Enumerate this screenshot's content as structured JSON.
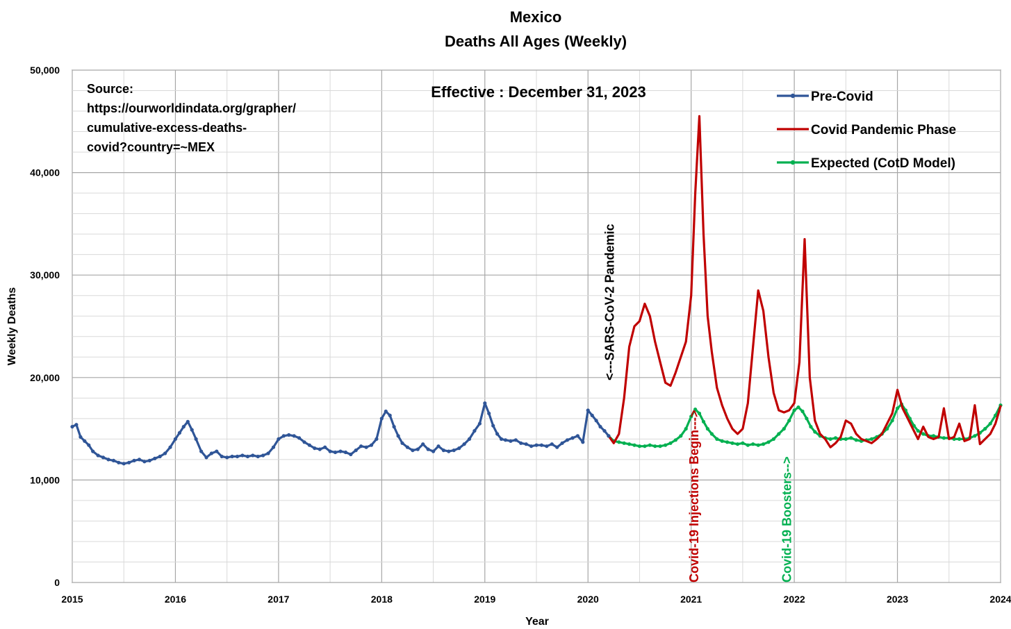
{
  "chart_data": {
    "type": "line",
    "title": "Mexico",
    "subtitle": "Deaths All Ages (Weekly)",
    "xlabel": "Year",
    "ylabel": "Weekly Deaths",
    "xlim": [
      2015,
      2024
    ],
    "ylim": [
      0,
      50000
    ],
    "x_ticks": [
      "2015",
      "2016",
      "2017",
      "2018",
      "2019",
      "2020",
      "2021",
      "2022",
      "2023",
      "2024"
    ],
    "y_ticks": [
      "0",
      "10,000",
      "20,000",
      "30,000",
      "40,000",
      "50,000"
    ],
    "grid": true,
    "legend_position": "top-right",
    "source_lines": [
      "Source:",
      "https://ourworldindata.org/grapher/",
      "cumulative-excess-deaths-",
      "covid?country=~MEX"
    ],
    "effective": "Effective : December 31, 2023",
    "annotations": [
      {
        "text": "<---SARS-CoV-2 Pandemic",
        "x": 2020.25,
        "color": "#000000"
      },
      {
        "text": "Covid-19 Injections Begin--->",
        "x": 2021.07,
        "color": "#c00000"
      },
      {
        "text": "Covid-19 Boosters-->",
        "x": 2021.97,
        "color": "#00b050"
      }
    ],
    "series": [
      {
        "name": "Pre-Covid",
        "color": "#2f5597",
        "markers": true,
        "points": [
          [
            2015.0,
            15200
          ],
          [
            2015.04,
            15400
          ],
          [
            2015.08,
            14200
          ],
          [
            2015.12,
            13800
          ],
          [
            2015.16,
            13400
          ],
          [
            2015.2,
            12800
          ],
          [
            2015.25,
            12400
          ],
          [
            2015.3,
            12200
          ],
          [
            2015.35,
            12000
          ],
          [
            2015.4,
            11900
          ],
          [
            2015.45,
            11700
          ],
          [
            2015.5,
            11600
          ],
          [
            2015.55,
            11700
          ],
          [
            2015.6,
            11900
          ],
          [
            2015.65,
            12000
          ],
          [
            2015.7,
            11800
          ],
          [
            2015.75,
            11900
          ],
          [
            2015.8,
            12100
          ],
          [
            2015.85,
            12300
          ],
          [
            2015.9,
            12600
          ],
          [
            2015.95,
            13200
          ],
          [
            2016.0,
            14000
          ],
          [
            2016.04,
            14600
          ],
          [
            2016.08,
            15200
          ],
          [
            2016.12,
            15700
          ],
          [
            2016.16,
            14900
          ],
          [
            2016.2,
            14000
          ],
          [
            2016.25,
            12800
          ],
          [
            2016.3,
            12200
          ],
          [
            2016.35,
            12600
          ],
          [
            2016.4,
            12800
          ],
          [
            2016.45,
            12300
          ],
          [
            2016.5,
            12200
          ],
          [
            2016.55,
            12300
          ],
          [
            2016.6,
            12300
          ],
          [
            2016.65,
            12400
          ],
          [
            2016.7,
            12300
          ],
          [
            2016.75,
            12400
          ],
          [
            2016.8,
            12300
          ],
          [
            2016.85,
            12400
          ],
          [
            2016.9,
            12600
          ],
          [
            2016.95,
            13200
          ],
          [
            2017.0,
            14000
          ],
          [
            2017.05,
            14300
          ],
          [
            2017.1,
            14400
          ],
          [
            2017.15,
            14300
          ],
          [
            2017.2,
            14100
          ],
          [
            2017.25,
            13700
          ],
          [
            2017.3,
            13400
          ],
          [
            2017.35,
            13100
          ],
          [
            2017.4,
            13000
          ],
          [
            2017.45,
            13200
          ],
          [
            2017.5,
            12800
          ],
          [
            2017.55,
            12700
          ],
          [
            2017.6,
            12800
          ],
          [
            2017.65,
            12700
          ],
          [
            2017.7,
            12500
          ],
          [
            2017.75,
            12900
          ],
          [
            2017.8,
            13300
          ],
          [
            2017.85,
            13200
          ],
          [
            2017.9,
            13400
          ],
          [
            2017.95,
            14000
          ],
          [
            2018.0,
            16000
          ],
          [
            2018.04,
            16700
          ],
          [
            2018.08,
            16300
          ],
          [
            2018.12,
            15200
          ],
          [
            2018.16,
            14300
          ],
          [
            2018.2,
            13600
          ],
          [
            2018.25,
            13200
          ],
          [
            2018.3,
            12900
          ],
          [
            2018.35,
            13000
          ],
          [
            2018.4,
            13500
          ],
          [
            2018.45,
            13000
          ],
          [
            2018.5,
            12800
          ],
          [
            2018.55,
            13300
          ],
          [
            2018.6,
            12900
          ],
          [
            2018.65,
            12800
          ],
          [
            2018.7,
            12900
          ],
          [
            2018.75,
            13100
          ],
          [
            2018.8,
            13500
          ],
          [
            2018.85,
            14000
          ],
          [
            2018.9,
            14800
          ],
          [
            2018.95,
            15500
          ],
          [
            2019.0,
            17500
          ],
          [
            2019.04,
            16500
          ],
          [
            2019.08,
            15300
          ],
          [
            2019.12,
            14500
          ],
          [
            2019.16,
            14000
          ],
          [
            2019.2,
            13900
          ],
          [
            2019.25,
            13800
          ],
          [
            2019.3,
            13900
          ],
          [
            2019.35,
            13600
          ],
          [
            2019.4,
            13500
          ],
          [
            2019.45,
            13300
          ],
          [
            2019.5,
            13400
          ],
          [
            2019.55,
            13400
          ],
          [
            2019.6,
            13300
          ],
          [
            2019.65,
            13500
          ],
          [
            2019.7,
            13200
          ],
          [
            2019.75,
            13600
          ],
          [
            2019.8,
            13900
          ],
          [
            2019.85,
            14100
          ],
          [
            2019.9,
            14300
          ],
          [
            2019.95,
            13700
          ],
          [
            2020.0,
            16800
          ],
          [
            2020.04,
            16300
          ],
          [
            2020.08,
            15800
          ],
          [
            2020.12,
            15200
          ],
          [
            2020.16,
            14800
          ],
          [
            2020.2,
            14300
          ]
        ]
      },
      {
        "name": "Covid Pandemic Phase",
        "color": "#c00000",
        "markers": false,
        "points": [
          [
            2020.2,
            14300
          ],
          [
            2020.25,
            13600
          ],
          [
            2020.3,
            14500
          ],
          [
            2020.35,
            18000
          ],
          [
            2020.4,
            23000
          ],
          [
            2020.45,
            25000
          ],
          [
            2020.5,
            25500
          ],
          [
            2020.55,
            27200
          ],
          [
            2020.6,
            26000
          ],
          [
            2020.65,
            23500
          ],
          [
            2020.7,
            21500
          ],
          [
            2020.75,
            19500
          ],
          [
            2020.8,
            19200
          ],
          [
            2020.85,
            20500
          ],
          [
            2020.9,
            22000
          ],
          [
            2020.95,
            23500
          ],
          [
            2021.0,
            28000
          ],
          [
            2021.04,
            38000
          ],
          [
            2021.08,
            45500
          ],
          [
            2021.12,
            34000
          ],
          [
            2021.16,
            26000
          ],
          [
            2021.2,
            22500
          ],
          [
            2021.25,
            19000
          ],
          [
            2021.3,
            17300
          ],
          [
            2021.35,
            16000
          ],
          [
            2021.4,
            15000
          ],
          [
            2021.45,
            14500
          ],
          [
            2021.5,
            15000
          ],
          [
            2021.55,
            17500
          ],
          [
            2021.6,
            23000
          ],
          [
            2021.65,
            28500
          ],
          [
            2021.7,
            26500
          ],
          [
            2021.75,
            22000
          ],
          [
            2021.8,
            18500
          ],
          [
            2021.85,
            16800
          ],
          [
            2021.9,
            16600
          ],
          [
            2021.95,
            16800
          ],
          [
            2022.0,
            17500
          ],
          [
            2022.05,
            21500
          ],
          [
            2022.1,
            33500
          ],
          [
            2022.15,
            20000
          ],
          [
            2022.2,
            15800
          ],
          [
            2022.25,
            14500
          ],
          [
            2022.3,
            14000
          ],
          [
            2022.35,
            13200
          ],
          [
            2022.4,
            13600
          ],
          [
            2022.45,
            14200
          ],
          [
            2022.5,
            15800
          ],
          [
            2022.55,
            15500
          ],
          [
            2022.6,
            14500
          ],
          [
            2022.65,
            14000
          ],
          [
            2022.7,
            13800
          ],
          [
            2022.75,
            13600
          ],
          [
            2022.8,
            14000
          ],
          [
            2022.85,
            14500
          ],
          [
            2022.9,
            15500
          ],
          [
            2022.95,
            16500
          ],
          [
            2023.0,
            18800
          ],
          [
            2023.05,
            17000
          ],
          [
            2023.1,
            16000
          ],
          [
            2023.15,
            15000
          ],
          [
            2023.2,
            14000
          ],
          [
            2023.25,
            15200
          ],
          [
            2023.3,
            14200
          ],
          [
            2023.35,
            14000
          ],
          [
            2023.4,
            14200
          ],
          [
            2023.45,
            17000
          ],
          [
            2023.5,
            14000
          ],
          [
            2023.55,
            14200
          ],
          [
            2023.6,
            15500
          ],
          [
            2023.65,
            13800
          ],
          [
            2023.7,
            14000
          ],
          [
            2023.75,
            17300
          ],
          [
            2023.8,
            13500
          ],
          [
            2023.85,
            14000
          ],
          [
            2023.9,
            14500
          ],
          [
            2023.95,
            15500
          ],
          [
            2024.0,
            17200
          ]
        ]
      },
      {
        "name": "Expected (CotD Model)",
        "color": "#00b050",
        "markers": true,
        "points": [
          [
            2020.2,
            14300
          ],
          [
            2020.25,
            13800
          ],
          [
            2020.3,
            13700
          ],
          [
            2020.35,
            13600
          ],
          [
            2020.4,
            13500
          ],
          [
            2020.45,
            13400
          ],
          [
            2020.5,
            13300
          ],
          [
            2020.55,
            13300
          ],
          [
            2020.6,
            13400
          ],
          [
            2020.65,
            13300
          ],
          [
            2020.7,
            13300
          ],
          [
            2020.75,
            13400
          ],
          [
            2020.8,
            13600
          ],
          [
            2020.85,
            13900
          ],
          [
            2020.9,
            14300
          ],
          [
            2020.95,
            15000
          ],
          [
            2021.0,
            16200
          ],
          [
            2021.04,
            16900
          ],
          [
            2021.08,
            16500
          ],
          [
            2021.12,
            15700
          ],
          [
            2021.16,
            15000
          ],
          [
            2021.2,
            14500
          ],
          [
            2021.25,
            14000
          ],
          [
            2021.3,
            13800
          ],
          [
            2021.35,
            13700
          ],
          [
            2021.4,
            13600
          ],
          [
            2021.45,
            13500
          ],
          [
            2021.5,
            13600
          ],
          [
            2021.55,
            13400
          ],
          [
            2021.6,
            13500
          ],
          [
            2021.65,
            13400
          ],
          [
            2021.7,
            13500
          ],
          [
            2021.75,
            13700
          ],
          [
            2021.8,
            14000
          ],
          [
            2021.85,
            14500
          ],
          [
            2021.9,
            15000
          ],
          [
            2021.95,
            15800
          ],
          [
            2022.0,
            16800
          ],
          [
            2022.04,
            17100
          ],
          [
            2022.08,
            16700
          ],
          [
            2022.12,
            16000
          ],
          [
            2022.16,
            15200
          ],
          [
            2022.2,
            14700
          ],
          [
            2022.25,
            14300
          ],
          [
            2022.3,
            14100
          ],
          [
            2022.35,
            14000
          ],
          [
            2022.4,
            14100
          ],
          [
            2022.45,
            14000
          ],
          [
            2022.5,
            14000
          ],
          [
            2022.55,
            14100
          ],
          [
            2022.6,
            13900
          ],
          [
            2022.65,
            13800
          ],
          [
            2022.7,
            13900
          ],
          [
            2022.75,
            14000
          ],
          [
            2022.8,
            14200
          ],
          [
            2022.85,
            14500
          ],
          [
            2022.9,
            15000
          ],
          [
            2022.95,
            15800
          ],
          [
            2023.0,
            17000
          ],
          [
            2023.04,
            17400
          ],
          [
            2023.08,
            16800
          ],
          [
            2023.12,
            16000
          ],
          [
            2023.16,
            15300
          ],
          [
            2023.2,
            14800
          ],
          [
            2023.25,
            14500
          ],
          [
            2023.3,
            14300
          ],
          [
            2023.35,
            14300
          ],
          [
            2023.4,
            14200
          ],
          [
            2023.45,
            14100
          ],
          [
            2023.5,
            14100
          ],
          [
            2023.55,
            14000
          ],
          [
            2023.6,
            14000
          ],
          [
            2023.65,
            14000
          ],
          [
            2023.7,
            14100
          ],
          [
            2023.75,
            14300
          ],
          [
            2023.8,
            14600
          ],
          [
            2023.85,
            15000
          ],
          [
            2023.9,
            15500
          ],
          [
            2023.95,
            16300
          ],
          [
            2024.0,
            17300
          ]
        ]
      }
    ]
  }
}
